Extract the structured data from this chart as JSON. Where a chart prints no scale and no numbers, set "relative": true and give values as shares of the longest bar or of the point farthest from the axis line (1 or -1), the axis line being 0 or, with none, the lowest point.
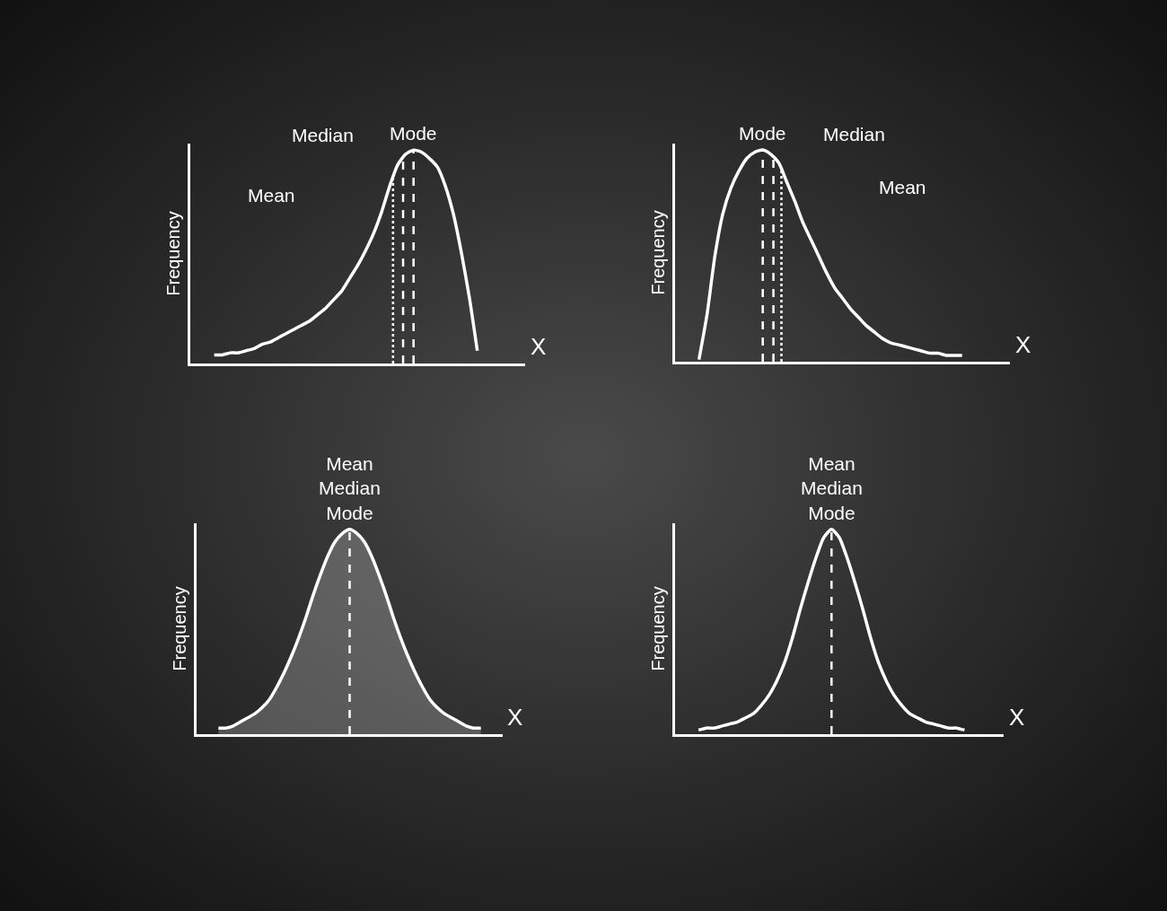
{
  "chart_data": [
    {
      "type": "line",
      "relative": true,
      "ylabel": "Frequency",
      "xlabel": "X",
      "tick_labels": false,
      "grid": false,
      "categories": [
        null,
        null,
        null,
        null,
        null,
        null,
        null,
        null,
        null,
        null,
        null,
        null,
        null,
        null,
        null,
        null,
        null,
        null,
        null,
        null,
        null,
        null,
        null,
        null,
        null,
        null,
        null,
        null,
        null,
        null,
        null,
        null,
        null,
        null,
        null,
        null,
        null,
        null,
        null,
        null,
        null
      ],
      "series": [
        {
          "color": "#ffffff",
          "values": [
            null,
            null,
            0.04,
            0.04,
            0.05,
            0.05,
            0.06,
            0.07,
            0.09,
            0.1,
            0.12,
            0.14,
            0.16,
            0.18,
            0.2,
            0.23,
            0.26,
            0.3,
            0.34,
            0.4,
            0.46,
            0.53,
            0.61,
            0.71,
            0.83,
            0.93,
            0.98,
            1,
            0.99,
            0.96,
            0.92,
            0.83,
            0.7,
            0.52,
            0.31,
            0.06,
            null,
            null,
            null,
            null,
            null
          ]
        }
      ],
      "annotations": [
        "Mean",
        "Median",
        "Mode"
      ]
    },
    {
      "type": "line",
      "relative": true,
      "ylabel": "Frequency",
      "xlabel": "X",
      "tick_labels": false,
      "grid": false,
      "categories": [
        null,
        null,
        null,
        null,
        null,
        null,
        null,
        null,
        null,
        null,
        null,
        null,
        null,
        null,
        null,
        null,
        null,
        null,
        null,
        null,
        null,
        null,
        null,
        null,
        null,
        null,
        null,
        null,
        null,
        null,
        null,
        null,
        null,
        null,
        null,
        null,
        null,
        null,
        null,
        null,
        null
      ],
      "series": [
        {
          "color": "#ffffff",
          "values": [
            null,
            null,
            0.01,
            0.22,
            0.5,
            0.7,
            0.82,
            0.9,
            0.96,
            0.99,
            1,
            0.98,
            0.94,
            0.85,
            0.76,
            0.66,
            0.58,
            0.5,
            0.42,
            0.35,
            0.3,
            0.25,
            0.21,
            0.17,
            0.14,
            0.11,
            0.09,
            0.08,
            0.07,
            0.06,
            0.05,
            0.04,
            0.04,
            0.03,
            0.03,
            0.03,
            null,
            null,
            null,
            null,
            null
          ]
        }
      ],
      "annotations": [
        "Mean",
        "Median",
        "Mode"
      ]
    },
    {
      "type": "area",
      "relative": true,
      "ylabel": "Frequency",
      "xlabel": "X",
      "tick_labels": false,
      "grid": false,
      "categories": [
        null,
        null,
        null,
        null,
        null,
        null,
        null,
        null,
        null,
        null,
        null,
        null,
        null,
        null,
        null,
        null,
        null,
        null,
        null,
        null,
        null,
        null,
        null,
        null,
        null,
        null,
        null,
        null,
        null,
        null,
        null,
        null,
        null,
        null,
        null,
        null,
        null,
        null,
        null,
        null,
        null
      ],
      "series": [
        {
          "color": "#ffffff",
          "values": [
            null,
            null,
            0.03,
            0.03,
            0.04,
            0.06,
            0.08,
            0.1,
            0.13,
            0.17,
            0.23,
            0.3,
            0.38,
            0.47,
            0.57,
            0.68,
            0.78,
            0.87,
            0.94,
            0.98,
            1,
            0.98,
            0.94,
            0.87,
            0.78,
            0.68,
            0.57,
            0.47,
            0.38,
            0.3,
            0.23,
            0.17,
            0.13,
            0.1,
            0.08,
            0.06,
            0.04,
            0.03,
            0.03,
            null,
            null
          ]
        }
      ],
      "annotations": [
        "Mean\nMedian\nMode"
      ]
    },
    {
      "type": "line",
      "relative": true,
      "ylabel": "Frequency",
      "xlabel": "X",
      "tick_labels": false,
      "grid": false,
      "categories": [
        null,
        null,
        null,
        null,
        null,
        null,
        null,
        null,
        null,
        null,
        null,
        null,
        null,
        null,
        null,
        null,
        null,
        null,
        null,
        null,
        null,
        null,
        null,
        null,
        null,
        null,
        null,
        null,
        null,
        null,
        null,
        null,
        null,
        null,
        null,
        null,
        null,
        null,
        null,
        null,
        null
      ],
      "series": [
        {
          "color": "#ffffff",
          "values": [
            null,
            null,
            0.02,
            0.03,
            0.03,
            0.04,
            0.05,
            0.06,
            0.08,
            0.1,
            0.14,
            0.19,
            0.26,
            0.35,
            0.47,
            0.61,
            0.74,
            0.86,
            0.96,
            1,
            0.96,
            0.86,
            0.74,
            0.61,
            0.47,
            0.35,
            0.26,
            0.19,
            0.14,
            0.1,
            0.08,
            0.06,
            0.05,
            0.04,
            0.03,
            0.03,
            0.02,
            null,
            null,
            null,
            null
          ]
        }
      ],
      "annotations": [
        "Mean\nMedian\nMode"
      ]
    }
  ]
}
